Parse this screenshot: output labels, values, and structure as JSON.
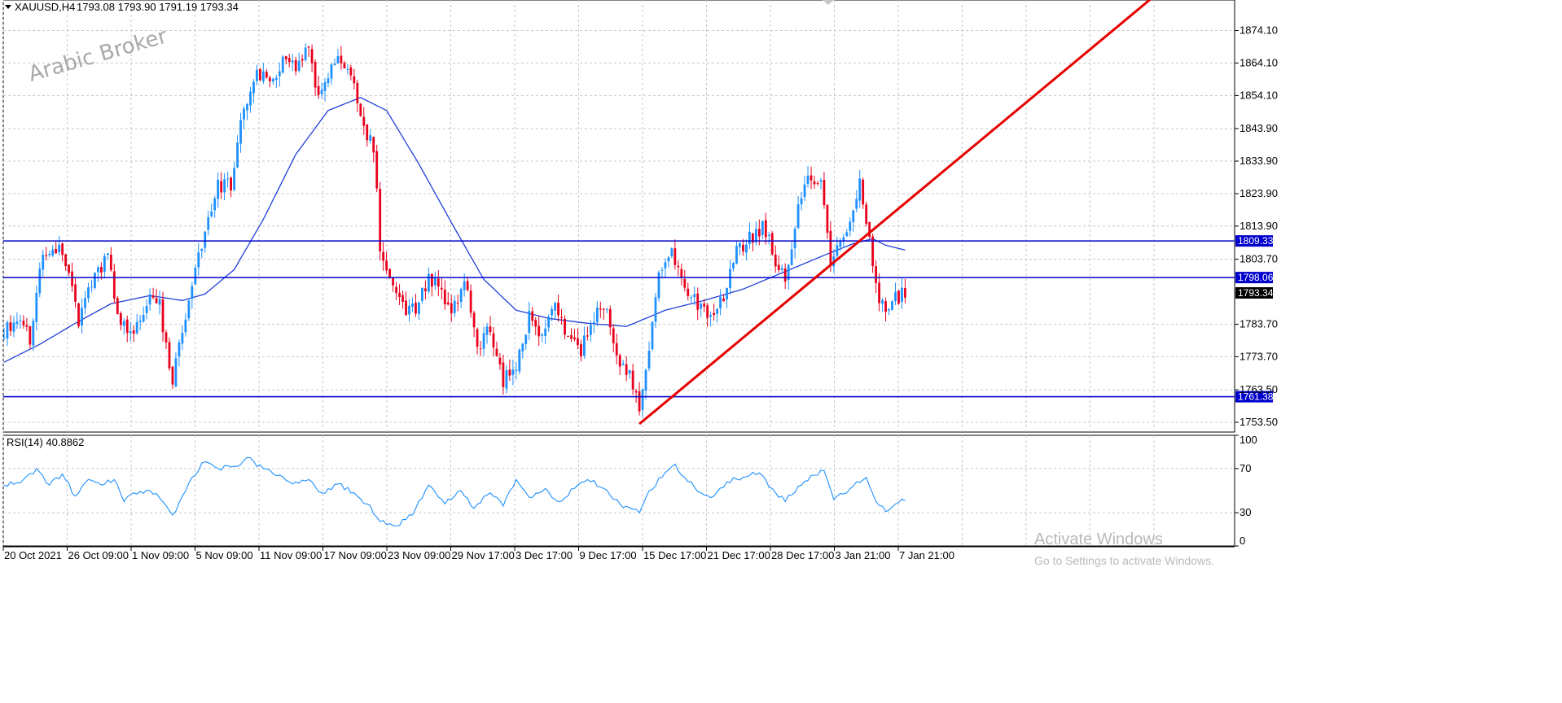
{
  "header": {
    "symbol": "XAUUSD,H4",
    "ohlc": "1793.08 1793.90 1791.19 1793.34"
  },
  "watermark": {
    "broker": "Arabic Broker",
    "activate_title": "Activate Windows",
    "activate_sub": "Go to Settings to activate Windows."
  },
  "colors": {
    "bull": "#1e90ff",
    "bear": "#e8001c",
    "ma": "#1f3fd8",
    "hline": "#0000cc",
    "trend": "#e60000",
    "rsi": "#1e90ff",
    "grid": "#c8c8c8"
  },
  "chart_data": [
    {
      "type": "candlestick",
      "title": "XAUUSD,H4",
      "x_tick_labels": [
        "20 Oct 2021",
        "26 Oct 09:00",
        "1 Nov 09:00",
        "5 Nov 09:00",
        "11 Nov 09:00",
        "17 Nov 09:00",
        "23 Nov 09:00",
        "29 Nov 17:00",
        "3 Dec 17:00",
        "9 Dec 17:00",
        "15 Dec 17:00",
        "21 Dec 17:00",
        "28 Dec 17:00",
        "3 Jan 21:00",
        "7 Jan 21:00"
      ],
      "y_tick_labels": [
        "1874.10",
        "1864.10",
        "1854.10",
        "1843.90",
        "1833.90",
        "1823.90",
        "1813.90",
        "1803.70",
        "1783.70",
        "1773.70",
        "1763.50",
        "1753.50"
      ],
      "ylim": [
        1750.5,
        1883.5
      ],
      "grid": true,
      "horizontal_lines": [
        {
          "label": "1809.33",
          "value": 1809.33
        },
        {
          "label": "1798.06",
          "value": 1798.06
        },
        {
          "label": "1761.38",
          "value": 1761.38
        }
      ],
      "current_price": {
        "label": "1793.34",
        "value": 1793.34
      },
      "trendline": {
        "from_bar": 196,
        "from_price": 1753.0,
        "to_bar": 354,
        "to_price": 1884.0
      },
      "moving_average_anchors": [
        {
          "bar": 0,
          "value": 1772.0
        },
        {
          "bar": 11,
          "value": 1777.5
        },
        {
          "bar": 22,
          "value": 1784.0
        },
        {
          "bar": 33,
          "value": 1790.0
        },
        {
          "bar": 45,
          "value": 1792.5
        },
        {
          "bar": 55,
          "value": 1791.0
        },
        {
          "bar": 62,
          "value": 1793.0
        },
        {
          "bar": 71,
          "value": 1800.5
        },
        {
          "bar": 80,
          "value": 1816.0
        },
        {
          "bar": 90,
          "value": 1836.0
        },
        {
          "bar": 100,
          "value": 1849.5
        },
        {
          "bar": 110,
          "value": 1853.5
        },
        {
          "bar": 118,
          "value": 1849.5
        },
        {
          "bar": 128,
          "value": 1833.0
        },
        {
          "bar": 138,
          "value": 1815.0
        },
        {
          "bar": 148,
          "value": 1797.5
        },
        {
          "bar": 158,
          "value": 1788.0
        },
        {
          "bar": 168,
          "value": 1785.5
        },
        {
          "bar": 180,
          "value": 1784.0
        },
        {
          "bar": 192,
          "value": 1783.0
        },
        {
          "bar": 204,
          "value": 1788.0
        },
        {
          "bar": 216,
          "value": 1791.0
        },
        {
          "bar": 228,
          "value": 1794.5
        },
        {
          "bar": 240,
          "value": 1799.5
        },
        {
          "bar": 252,
          "value": 1804.5
        },
        {
          "bar": 262,
          "value": 1808.5
        },
        {
          "bar": 268,
          "value": 1810.0
        },
        {
          "bar": 272,
          "value": 1808.0
        },
        {
          "bar": 278,
          "value": 1806.5
        }
      ],
      "candle_path_anchors": [
        {
          "bar": 0,
          "value": 1781.0
        },
        {
          "bar": 5,
          "value": 1786.0
        },
        {
          "bar": 8,
          "value": 1779.0
        },
        {
          "bar": 12,
          "value": 1805.0
        },
        {
          "bar": 16,
          "value": 1808.0
        },
        {
          "bar": 20,
          "value": 1800.0
        },
        {
          "bar": 23,
          "value": 1785.0
        },
        {
          "bar": 28,
          "value": 1799.0
        },
        {
          "bar": 32,
          "value": 1805.0
        },
        {
          "bar": 36,
          "value": 1783.0
        },
        {
          "bar": 40,
          "value": 1780.0
        },
        {
          "bar": 44,
          "value": 1791.5
        },
        {
          "bar": 48,
          "value": 1789.0
        },
        {
          "bar": 52,
          "value": 1767.0
        },
        {
          "bar": 55,
          "value": 1782.0
        },
        {
          "bar": 58,
          "value": 1794.0
        },
        {
          "bar": 62,
          "value": 1814.0
        },
        {
          "bar": 66,
          "value": 1826.0
        },
        {
          "bar": 70,
          "value": 1827.0
        },
        {
          "bar": 74,
          "value": 1850.0
        },
        {
          "bar": 78,
          "value": 1862.0
        },
        {
          "bar": 82,
          "value": 1858.0
        },
        {
          "bar": 86,
          "value": 1866.0
        },
        {
          "bar": 90,
          "value": 1862.0
        },
        {
          "bar": 94,
          "value": 1870.0
        },
        {
          "bar": 97,
          "value": 1852.0
        },
        {
          "bar": 102,
          "value": 1866.0
        },
        {
          "bar": 107,
          "value": 1862.0
        },
        {
          "bar": 111,
          "value": 1845.0
        },
        {
          "bar": 114,
          "value": 1838.0
        },
        {
          "bar": 116,
          "value": 1808.0
        },
        {
          "bar": 120,
          "value": 1796.0
        },
        {
          "bar": 124,
          "value": 1787.0
        },
        {
          "bar": 128,
          "value": 1790.0
        },
        {
          "bar": 131,
          "value": 1799.0
        },
        {
          "bar": 135,
          "value": 1793.0
        },
        {
          "bar": 138,
          "value": 1786.0
        },
        {
          "bar": 142,
          "value": 1798.0
        },
        {
          "bar": 146,
          "value": 1775.0
        },
        {
          "bar": 150,
          "value": 1783.0
        },
        {
          "bar": 154,
          "value": 1766.0
        },
        {
          "bar": 158,
          "value": 1772.0
        },
        {
          "bar": 162,
          "value": 1786.0
        },
        {
          "bar": 166,
          "value": 1780.0
        },
        {
          "bar": 170,
          "value": 1788.0
        },
        {
          "bar": 174,
          "value": 1779.0
        },
        {
          "bar": 178,
          "value": 1776.0
        },
        {
          "bar": 182,
          "value": 1786.0
        },
        {
          "bar": 186,
          "value": 1788.0
        },
        {
          "bar": 190,
          "value": 1772.0
        },
        {
          "bar": 194,
          "value": 1766.0
        },
        {
          "bar": 196,
          "value": 1758.0
        },
        {
          "bar": 199,
          "value": 1775.0
        },
        {
          "bar": 202,
          "value": 1800.0
        },
        {
          "bar": 206,
          "value": 1807.0
        },
        {
          "bar": 210,
          "value": 1795.0
        },
        {
          "bar": 214,
          "value": 1790.0
        },
        {
          "bar": 218,
          "value": 1787.0
        },
        {
          "bar": 222,
          "value": 1792.0
        },
        {
          "bar": 226,
          "value": 1806.0
        },
        {
          "bar": 230,
          "value": 1810.0
        },
        {
          "bar": 234,
          "value": 1814.0
        },
        {
          "bar": 237,
          "value": 1806.0
        },
        {
          "bar": 241,
          "value": 1797.0
        },
        {
          "bar": 245,
          "value": 1820.0
        },
        {
          "bar": 249,
          "value": 1830.0
        },
        {
          "bar": 252,
          "value": 1826.0
        },
        {
          "bar": 255,
          "value": 1804.0
        },
        {
          "bar": 258,
          "value": 1810.0
        },
        {
          "bar": 261,
          "value": 1816.0
        },
        {
          "bar": 264,
          "value": 1827.0
        },
        {
          "bar": 267,
          "value": 1811.0
        },
        {
          "bar": 269,
          "value": 1795.0
        },
        {
          "bar": 272,
          "value": 1788.0
        },
        {
          "bar": 275,
          "value": 1792.0
        },
        {
          "bar": 278,
          "value": 1793.34
        }
      ]
    },
    {
      "type": "line",
      "title": "RSI(14) 40.8862",
      "y_tick_labels": [
        "100",
        "70",
        "30",
        "0"
      ],
      "ylim": [
        0,
        100
      ],
      "grid": true,
      "series": [
        {
          "name": "RSI(14)",
          "anchors": [
            {
              "bar": 0,
              "value": 55
            },
            {
              "bar": 5,
              "value": 57
            },
            {
              "bar": 10,
              "value": 70
            },
            {
              "bar": 14,
              "value": 55
            },
            {
              "bar": 18,
              "value": 65
            },
            {
              "bar": 22,
              "value": 45
            },
            {
              "bar": 26,
              "value": 60
            },
            {
              "bar": 30,
              "value": 55
            },
            {
              "bar": 34,
              "value": 60
            },
            {
              "bar": 37,
              "value": 40
            },
            {
              "bar": 40,
              "value": 48
            },
            {
              "bar": 45,
              "value": 50
            },
            {
              "bar": 49,
              "value": 40
            },
            {
              "bar": 52,
              "value": 28
            },
            {
              "bar": 55,
              "value": 45
            },
            {
              "bar": 58,
              "value": 62
            },
            {
              "bar": 62,
              "value": 76
            },
            {
              "bar": 66,
              "value": 70
            },
            {
              "bar": 71,
              "value": 72
            },
            {
              "bar": 75,
              "value": 80
            },
            {
              "bar": 80,
              "value": 70
            },
            {
              "bar": 85,
              "value": 64
            },
            {
              "bar": 89,
              "value": 56
            },
            {
              "bar": 94,
              "value": 60
            },
            {
              "bar": 98,
              "value": 48
            },
            {
              "bar": 103,
              "value": 56
            },
            {
              "bar": 108,
              "value": 48
            },
            {
              "bar": 112,
              "value": 38
            },
            {
              "bar": 116,
              "value": 22
            },
            {
              "bar": 121,
              "value": 18
            },
            {
              "bar": 126,
              "value": 28
            },
            {
              "bar": 131,
              "value": 55
            },
            {
              "bar": 136,
              "value": 38
            },
            {
              "bar": 141,
              "value": 50
            },
            {
              "bar": 145,
              "value": 34
            },
            {
              "bar": 150,
              "value": 48
            },
            {
              "bar": 154,
              "value": 36
            },
            {
              "bar": 158,
              "value": 60
            },
            {
              "bar": 162,
              "value": 44
            },
            {
              "bar": 167,
              "value": 52
            },
            {
              "bar": 171,
              "value": 40
            },
            {
              "bar": 176,
              "value": 52
            },
            {
              "bar": 180,
              "value": 60
            },
            {
              "bar": 185,
              "value": 52
            },
            {
              "bar": 190,
              "value": 38
            },
            {
              "bar": 196,
              "value": 30
            },
            {
              "bar": 199,
              "value": 50
            },
            {
              "bar": 203,
              "value": 62
            },
            {
              "bar": 207,
              "value": 74
            },
            {
              "bar": 211,
              "value": 58
            },
            {
              "bar": 215,
              "value": 48
            },
            {
              "bar": 219,
              "value": 45
            },
            {
              "bar": 223,
              "value": 58
            },
            {
              "bar": 228,
              "value": 62
            },
            {
              "bar": 233,
              "value": 66
            },
            {
              "bar": 237,
              "value": 52
            },
            {
              "bar": 241,
              "value": 40
            },
            {
              "bar": 245,
              "value": 54
            },
            {
              "bar": 250,
              "value": 64
            },
            {
              "bar": 253,
              "value": 68
            },
            {
              "bar": 256,
              "value": 42
            },
            {
              "bar": 260,
              "value": 48
            },
            {
              "bar": 263,
              "value": 58
            },
            {
              "bar": 266,
              "value": 62
            },
            {
              "bar": 269,
              "value": 40
            },
            {
              "bar": 272,
              "value": 31
            },
            {
              "bar": 275,
              "value": 38
            },
            {
              "bar": 278,
              "value": 40.8862
            }
          ]
        }
      ]
    }
  ]
}
